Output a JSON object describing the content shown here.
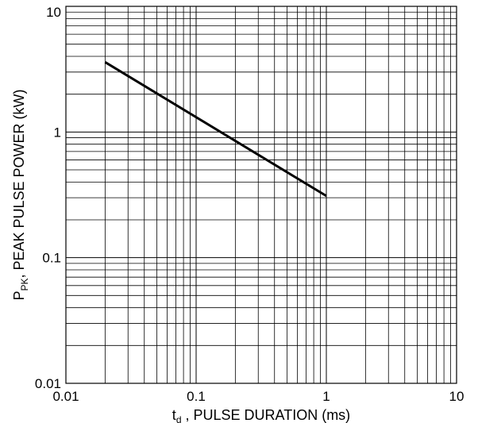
{
  "chart_data": {
    "type": "line",
    "title": "",
    "xlabel": {
      "symbol": "t",
      "subscript": "d",
      "text": " , PULSE DURATION (ms)"
    },
    "ylabel": {
      "symbol": "P",
      "subscript": "PK",
      "text": ", PEAK PULSE POWER (kW)"
    },
    "x_scale": "log",
    "y_scale": "log",
    "xlim": [
      0.01,
      10
    ],
    "ylim": [
      0.01,
      10
    ],
    "x_ticks": [
      {
        "value": 0.01,
        "label": "0.01"
      },
      {
        "value": 0.1,
        "label": "0.1"
      },
      {
        "value": 1,
        "label": "1"
      },
      {
        "value": 10,
        "label": "10"
      }
    ],
    "y_ticks": [
      {
        "value": 10,
        "label": "10"
      },
      {
        "value": 1,
        "label": "1"
      },
      {
        "value": 0.1,
        "label": "0.1"
      },
      {
        "value": 0.01,
        "label": "0.01"
      }
    ],
    "grid": true,
    "legend": "none",
    "series": [
      {
        "x": [
          0.02,
          1
        ],
        "y": [
          3.6,
          0.31
        ]
      }
    ]
  }
}
